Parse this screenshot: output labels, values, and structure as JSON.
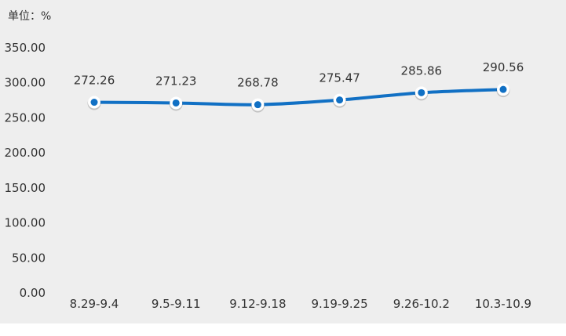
{
  "chart_data": {
    "type": "line",
    "unit_label": "单位：%",
    "categories": [
      "8.29-9.4",
      "9.5-9.11",
      "9.12-9.18",
      "9.19-9.25",
      "9.26-10.2",
      "10.3-10.9"
    ],
    "series": [
      {
        "values": [
          272.26,
          271.23,
          268.78,
          275.47,
          285.86,
          290.56
        ],
        "data_labels": [
          "272.26",
          "271.23",
          "268.78",
          "275.47",
          "285.86",
          "290.56"
        ],
        "color": "#1170c4"
      }
    ],
    "y_ticks": [
      "0.00",
      "50.00",
      "100.00",
      "150.00",
      "200.00",
      "250.00",
      "300.00",
      "350.00"
    ],
    "ylim": [
      0,
      350
    ],
    "grid": false,
    "legend": "none",
    "background_color": "#eeeeee",
    "marker_fill": "#1170c4",
    "marker_ring": "#ffffff"
  }
}
